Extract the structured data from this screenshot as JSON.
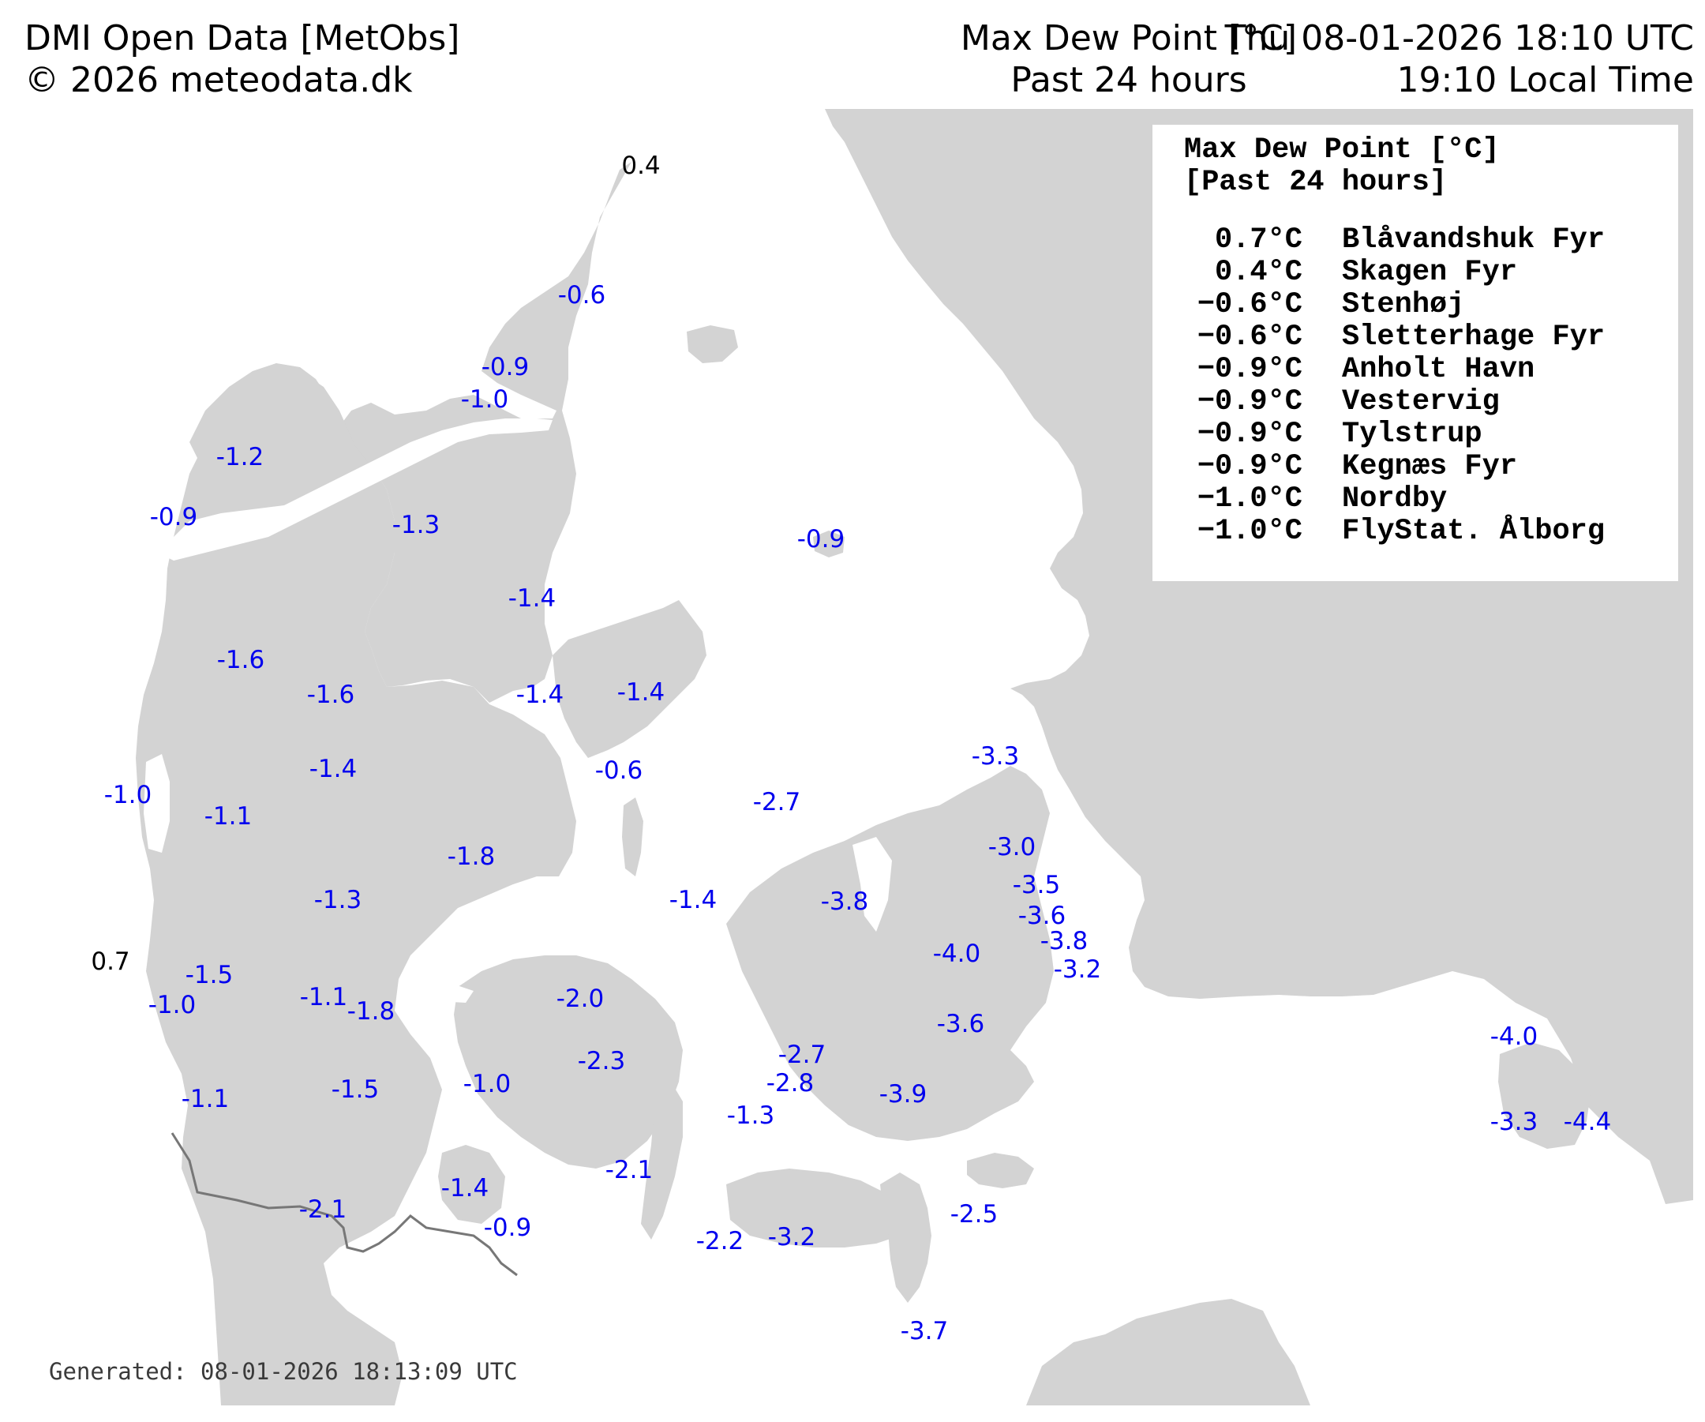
{
  "header": {
    "source": "DMI Open Data [MetObs]",
    "copyright": "© 2026 meteodata.dk",
    "title": "Max Dew Point [°C]",
    "period": "Past 24 hours",
    "utc_time": "Thu 08-01-2026 18:10 UTC",
    "local_time": "19:10 Local Time"
  },
  "legend": {
    "title": "Max Dew Point [°C]",
    "subtitle": "[Past 24 hours]",
    "entries": [
      {
        "value": "0.7°C",
        "station": "Blåvandshuk Fyr"
      },
      {
        "value": "0.4°C",
        "station": "Skagen Fyr"
      },
      {
        "value": "−0.6°C",
        "station": "Stenhøj"
      },
      {
        "value": "−0.6°C",
        "station": "Sletterhage Fyr"
      },
      {
        "value": "−0.9°C",
        "station": "Anholt Havn"
      },
      {
        "value": "−0.9°C",
        "station": "Vestervig"
      },
      {
        "value": "−0.9°C",
        "station": "Tylstrup"
      },
      {
        "value": "−0.9°C",
        "station": "Kegnæs Fyr"
      },
      {
        "value": "−1.0°C",
        "station": "Nordby"
      },
      {
        "value": "−1.0°C",
        "station": "FlyStat. Ålborg"
      }
    ]
  },
  "stations": [
    {
      "v": "0.4",
      "color": "#000000"
    },
    {
      "v": "-0.6",
      "color": "#0000ee"
    },
    {
      "v": "-0.9",
      "color": "#0000ee"
    },
    {
      "v": "-1.0",
      "color": "#0000ee"
    },
    {
      "v": "-1.2",
      "color": "#0000ee"
    },
    {
      "v": "-0.9",
      "color": "#0000ee"
    },
    {
      "v": "-1.3",
      "color": "#0000ee"
    },
    {
      "v": "-0.9",
      "color": "#0000ee"
    },
    {
      "v": "-1.4",
      "color": "#0000ee"
    },
    {
      "v": "-1.6",
      "color": "#0000ee"
    },
    {
      "v": "-1.6",
      "color": "#0000ee"
    },
    {
      "v": "-1.4",
      "color": "#0000ee"
    },
    {
      "v": "-1.4",
      "color": "#0000ee"
    },
    {
      "v": "-1.4",
      "color": "#0000ee"
    },
    {
      "v": "-0.6",
      "color": "#0000ee"
    },
    {
      "v": "-1.0",
      "color": "#0000ee"
    },
    {
      "v": "-1.1",
      "color": "#0000ee"
    },
    {
      "v": "-3.3",
      "color": "#0000ee"
    },
    {
      "v": "-2.7",
      "color": "#0000ee"
    },
    {
      "v": "-1.8",
      "color": "#0000ee"
    },
    {
      "v": "-3.0",
      "color": "#0000ee"
    },
    {
      "v": "-3.5",
      "color": "#0000ee"
    },
    {
      "v": "-1.3",
      "color": "#0000ee"
    },
    {
      "v": "-1.4",
      "color": "#0000ee"
    },
    {
      "v": "-3.8",
      "color": "#0000ee"
    },
    {
      "v": "-3.6",
      "color": "#0000ee"
    },
    {
      "v": "-3.8",
      "color": "#0000ee"
    },
    {
      "v": "0.7",
      "color": "#000000"
    },
    {
      "v": "-4.0",
      "color": "#0000ee"
    },
    {
      "v": "-3.2",
      "color": "#0000ee"
    },
    {
      "v": "-1.5",
      "color": "#0000ee"
    },
    {
      "v": "-1.0",
      "color": "#0000ee"
    },
    {
      "v": "-1.1",
      "color": "#0000ee"
    },
    {
      "v": "-1.8",
      "color": "#0000ee"
    },
    {
      "v": "-2.0",
      "color": "#0000ee"
    },
    {
      "v": "-3.6",
      "color": "#0000ee"
    },
    {
      "v": "-2.3",
      "color": "#0000ee"
    },
    {
      "v": "-2.7",
      "color": "#0000ee"
    },
    {
      "v": "-4.0",
      "color": "#0000ee"
    },
    {
      "v": "-2.8",
      "color": "#0000ee"
    },
    {
      "v": "-1.0",
      "color": "#0000ee"
    },
    {
      "v": "-1.5",
      "color": "#0000ee"
    },
    {
      "v": "-1.1",
      "color": "#0000ee"
    },
    {
      "v": "-3.9",
      "color": "#0000ee"
    },
    {
      "v": "-1.3",
      "color": "#0000ee"
    },
    {
      "v": "-3.3",
      "color": "#0000ee"
    },
    {
      "v": "-4.4",
      "color": "#0000ee"
    },
    {
      "v": "-2.1",
      "color": "#0000ee"
    },
    {
      "v": "-1.4",
      "color": "#0000ee"
    },
    {
      "v": "-2.1",
      "color": "#0000ee"
    },
    {
      "v": "-2.5",
      "color": "#0000ee"
    },
    {
      "v": "-0.9",
      "color": "#0000ee"
    },
    {
      "v": "-2.2",
      "color": "#0000ee"
    },
    {
      "v": "-3.2",
      "color": "#0000ee"
    },
    {
      "v": "-3.7",
      "color": "#0000ee"
    }
  ],
  "footer": {
    "generated": "Generated: 08-01-2026 18:13:09 UTC"
  },
  "colors": {
    "land": "#d3d3d3",
    "sea": "#ffffff",
    "station_value": "#0000ee",
    "station_max": "#000000",
    "border": "#777777"
  }
}
